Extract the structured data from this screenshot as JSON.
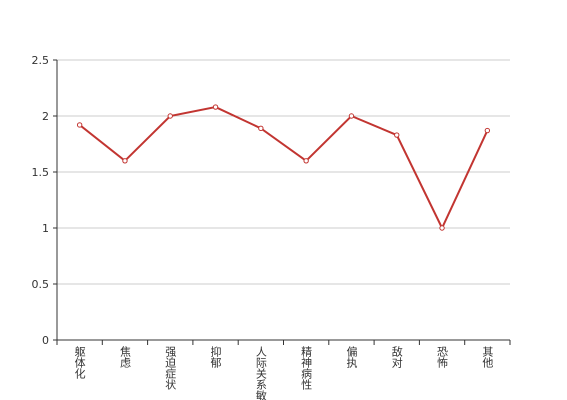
{
  "chart_data": {
    "type": "line",
    "categories": [
      "躯体化",
      "焦虑",
      "强迫症状",
      "抑郁",
      "人际关系敏感",
      "精神病性",
      "偏执",
      "敌对",
      "恐怖",
      "其他"
    ],
    "values": [
      1.92,
      1.6,
      2.0,
      2.08,
      1.89,
      1.6,
      2.0,
      1.83,
      1.0,
      1.87
    ],
    "color": "#c23531",
    "ylim": [
      0,
      2.5
    ],
    "yticks": [
      0,
      0.5,
      1,
      1.5,
      2,
      2.5
    ],
    "grid": true
  }
}
